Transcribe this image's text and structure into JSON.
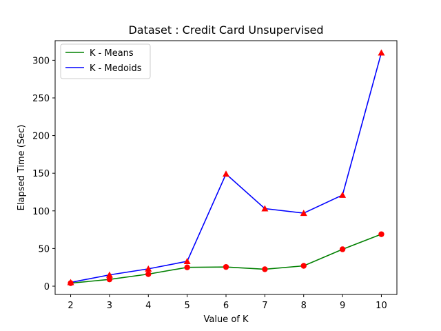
{
  "chart_data": {
    "type": "line",
    "title": "Dataset : Credit Card Unsupervised",
    "xlabel": "Value of K",
    "ylabel": "Elapsed Time (Sec)",
    "x": [
      2,
      3,
      4,
      5,
      6,
      7,
      8,
      9,
      10
    ],
    "xlim": [
      1.6,
      10.4
    ],
    "ylim": [
      -11,
      326
    ],
    "xticks": [
      2,
      3,
      4,
      5,
      6,
      7,
      8,
      9,
      10
    ],
    "yticks": [
      0,
      50,
      100,
      150,
      200,
      250,
      300
    ],
    "grid": false,
    "legend_position": "top-left",
    "marker_color": "#ff0000",
    "series": [
      {
        "name": "K - Means",
        "color": "#008000",
        "marker": "circle",
        "values": [
          4,
          9,
          16,
          25,
          25.5,
          22.5,
          27,
          49,
          69
        ]
      },
      {
        "name": "K - Medoids",
        "color": "#0000ff",
        "marker": "triangle",
        "values": [
          5,
          15,
          23,
          33,
          149,
          103,
          97,
          121,
          310
        ]
      }
    ]
  }
}
